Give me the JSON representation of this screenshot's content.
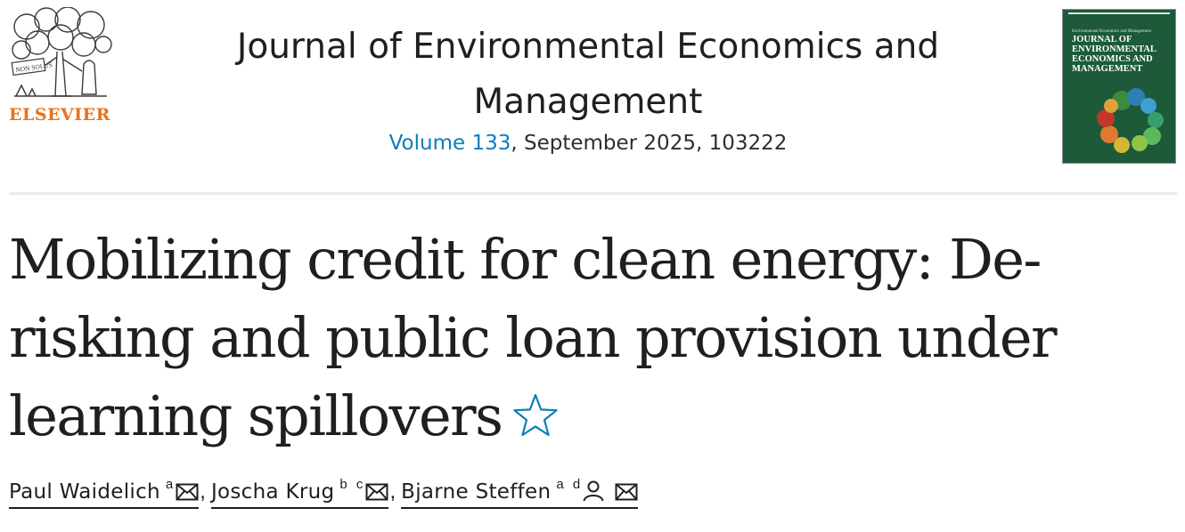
{
  "publisher": {
    "name": "ELSEVIER",
    "logo_icon": "elsevier-tree-icon",
    "logo_motto": "NON SOLUS"
  },
  "journal": {
    "title": "Journal of Environmental Economics and Management",
    "volume_link": "Volume 133",
    "issue_rest": ", September 2025, 103222"
  },
  "cover": {
    "small_top": "Environmental Economics and Management",
    "title": "JOURNAL OF ENVIRONMENTAL ECONOMICS AND MANAGEMENT"
  },
  "article": {
    "title": "Mobilizing credit for clean energy: De-risking and public loan provision under learning spillovers",
    "star_icon": "star-outline-icon"
  },
  "authors": [
    {
      "name": "Paul Waidelich",
      "affiliations": "a",
      "icons": [
        "mail-icon"
      ]
    },
    {
      "name": "Joscha Krug",
      "affiliations": "b c",
      "icons": [
        "mail-icon"
      ]
    },
    {
      "name": "Bjarne Steffen",
      "affiliations": "a d",
      "icons": [
        "person-icon",
        "mail-icon"
      ]
    }
  ],
  "colors": {
    "link": "#0c7dbb",
    "publisher_orange": "#e9711c",
    "cover_green": "#1c5a3a"
  }
}
